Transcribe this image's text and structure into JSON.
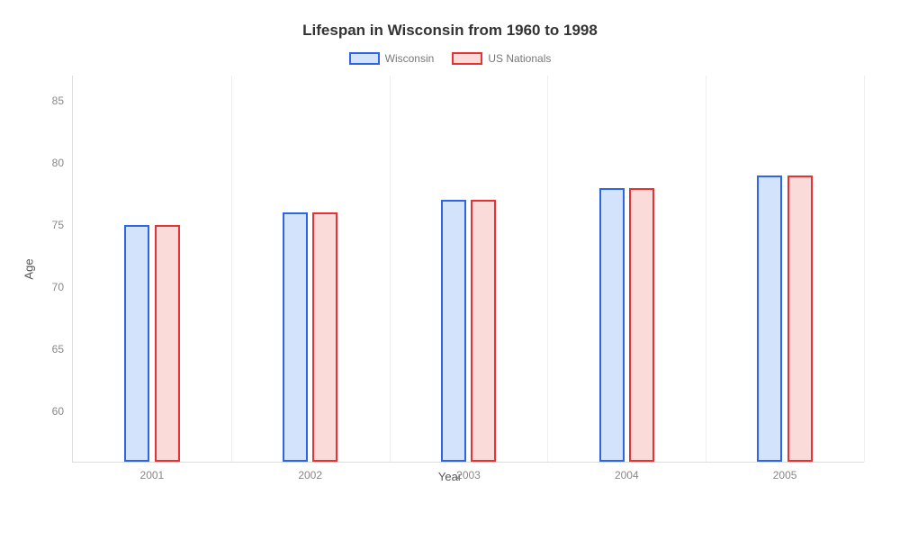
{
  "chart": {
    "type": "bar",
    "title": "Lifespan in Wisconsin from 1960 to 1998",
    "title_fontsize": 17,
    "title_color": "#333333",
    "background_color": "#ffffff",
    "xlabel": "Year",
    "ylabel": "Age",
    "axis_label_fontsize": 13,
    "axis_label_color": "#555555",
    "tick_fontsize": 12,
    "tick_color": "#888888",
    "legend_fontsize": 12,
    "legend_color": "#777777",
    "grid_color": "#eeeeee",
    "border_color": "#dddddd",
    "ylim": [
      57,
      88
    ],
    "yticks": [
      60,
      65,
      70,
      75,
      80,
      85
    ],
    "categories": [
      "2001",
      "2002",
      "2003",
      "2004",
      "2005"
    ],
    "bar_width_ratio": 0.16,
    "bar_gap_ratio": 0.03,
    "series": [
      {
        "name": "Wisconsin",
        "fill_color": "#d4e3fc",
        "border_color": "#2e64e6",
        "values": [
          76,
          77,
          78,
          79,
          80
        ]
      },
      {
        "name": "US Nationals",
        "fill_color": "#fbdada",
        "border_color": "#e63232",
        "values": [
          76,
          77,
          78,
          79,
          80
        ]
      }
    ]
  }
}
